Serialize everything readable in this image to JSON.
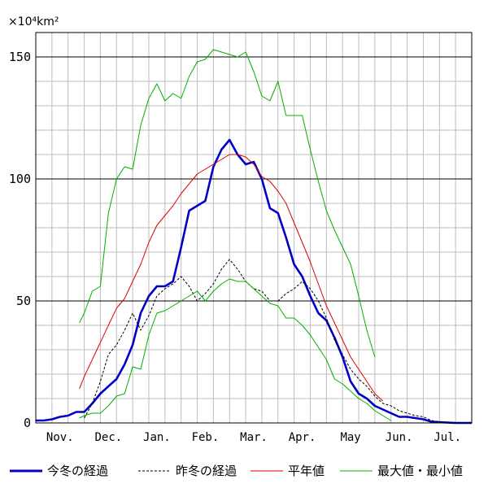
{
  "chart_data": {
    "type": "line",
    "unit_label": "×10⁴km²",
    "ylim": [
      0,
      160
    ],
    "yticks": [
      0,
      50,
      100,
      150
    ],
    "x_axis": "days since Nov 1",
    "xlim": [
      0,
      270
    ],
    "months": [
      "Nov.",
      "Dec.",
      "Jan.",
      "Feb.",
      "Mar.",
      "Apr.",
      "May",
      "Jun.",
      "Jul."
    ],
    "grid": true,
    "legend_position": "bottom",
    "series": [
      {
        "name": "今冬の経過",
        "color": "#0000c8",
        "style": "solid-thick",
        "points": [
          [
            0,
            1
          ],
          [
            5,
            1
          ],
          [
            10,
            1.5
          ],
          [
            15,
            2.5
          ],
          [
            20,
            3
          ],
          [
            25,
            4.5
          ],
          [
            30,
            4.5
          ],
          [
            35,
            8
          ],
          [
            40,
            12
          ],
          [
            45,
            15
          ],
          [
            50,
            18
          ],
          [
            55,
            24
          ],
          [
            60,
            32
          ],
          [
            65,
            45
          ],
          [
            70,
            52
          ],
          [
            75,
            56
          ],
          [
            80,
            56
          ],
          [
            85,
            58
          ],
          [
            90,
            72
          ],
          [
            95,
            87
          ],
          [
            100,
            89
          ],
          [
            105,
            91
          ],
          [
            110,
            105
          ],
          [
            115,
            112
          ],
          [
            120,
            116
          ],
          [
            125,
            110
          ],
          [
            130,
            106
          ],
          [
            135,
            107
          ],
          [
            140,
            100
          ],
          [
            145,
            88
          ],
          [
            150,
            86
          ],
          [
            155,
            76
          ],
          [
            160,
            65
          ],
          [
            165,
            60
          ],
          [
            170,
            52
          ],
          [
            175,
            45
          ],
          [
            180,
            42
          ],
          [
            185,
            35
          ],
          [
            190,
            27
          ],
          [
            195,
            17
          ],
          [
            200,
            12
          ],
          [
            205,
            10
          ],
          [
            210,
            7
          ],
          [
            215,
            5.5
          ],
          [
            220,
            4
          ],
          [
            225,
            2.5
          ],
          [
            230,
            2.5
          ],
          [
            235,
            2
          ],
          [
            240,
            1.5
          ],
          [
            245,
            0.5
          ],
          [
            250,
            0.3
          ],
          [
            260,
            0
          ],
          [
            270,
            0
          ]
        ]
      },
      {
        "name": "昨冬の経過",
        "color": "#000000",
        "style": "dashed",
        "points": [
          [
            30,
            2
          ],
          [
            35,
            8
          ],
          [
            40,
            17
          ],
          [
            45,
            28
          ],
          [
            50,
            32
          ],
          [
            55,
            38
          ],
          [
            60,
            45
          ],
          [
            65,
            38
          ],
          [
            70,
            44
          ],
          [
            75,
            52
          ],
          [
            80,
            55
          ],
          [
            85,
            57
          ],
          [
            90,
            60
          ],
          [
            95,
            56
          ],
          [
            100,
            50
          ],
          [
            105,
            53
          ],
          [
            110,
            57
          ],
          [
            115,
            63
          ],
          [
            120,
            67
          ],
          [
            125,
            63
          ],
          [
            130,
            58
          ],
          [
            135,
            55
          ],
          [
            140,
            54
          ],
          [
            145,
            50
          ],
          [
            150,
            50
          ],
          [
            155,
            53
          ],
          [
            160,
            55
          ],
          [
            165,
            58
          ],
          [
            170,
            55
          ],
          [
            175,
            50
          ],
          [
            180,
            43
          ],
          [
            185,
            34
          ],
          [
            190,
            28
          ],
          [
            195,
            22
          ],
          [
            200,
            18
          ],
          [
            205,
            15
          ],
          [
            210,
            11
          ],
          [
            215,
            8
          ],
          [
            220,
            7
          ],
          [
            225,
            5
          ],
          [
            230,
            4
          ],
          [
            235,
            3
          ],
          [
            240,
            2.5
          ],
          [
            245,
            1
          ],
          [
            250,
            0.5
          ],
          [
            255,
            0
          ]
        ]
      },
      {
        "name": "平年値",
        "color": "#e00000",
        "style": "solid",
        "points": [
          [
            27,
            14
          ],
          [
            30,
            19
          ],
          [
            35,
            26
          ],
          [
            40,
            33
          ],
          [
            45,
            40
          ],
          [
            50,
            47
          ],
          [
            55,
            51
          ],
          [
            60,
            58
          ],
          [
            65,
            65
          ],
          [
            70,
            74
          ],
          [
            75,
            81
          ],
          [
            80,
            85
          ],
          [
            85,
            89
          ],
          [
            90,
            94
          ],
          [
            95,
            98
          ],
          [
            100,
            102
          ],
          [
            105,
            104
          ],
          [
            110,
            106
          ],
          [
            115,
            108
          ],
          [
            120,
            110
          ],
          [
            125,
            110
          ],
          [
            130,
            109
          ],
          [
            135,
            106
          ],
          [
            140,
            101
          ],
          [
            145,
            99
          ],
          [
            150,
            95
          ],
          [
            155,
            90
          ],
          [
            160,
            82
          ],
          [
            165,
            74
          ],
          [
            170,
            66
          ],
          [
            175,
            57
          ],
          [
            180,
            48
          ],
          [
            185,
            41
          ],
          [
            190,
            34
          ],
          [
            195,
            27
          ],
          [
            200,
            22
          ],
          [
            205,
            17
          ],
          [
            210,
            12
          ],
          [
            215,
            9
          ]
        ]
      },
      {
        "name": "最大値・最小値 (最大)",
        "color": "#00b000",
        "style": "solid",
        "points": [
          [
            27,
            41
          ],
          [
            30,
            45
          ],
          [
            35,
            54
          ],
          [
            40,
            56
          ],
          [
            45,
            86
          ],
          [
            50,
            100
          ],
          [
            55,
            105
          ],
          [
            60,
            104
          ],
          [
            65,
            122
          ],
          [
            70,
            133
          ],
          [
            75,
            139
          ],
          [
            80,
            132
          ],
          [
            85,
            135
          ],
          [
            90,
            133
          ],
          [
            95,
            142
          ],
          [
            100,
            148
          ],
          [
            105,
            149
          ],
          [
            110,
            153
          ],
          [
            115,
            152
          ],
          [
            120,
            151
          ],
          [
            125,
            150
          ],
          [
            130,
            152
          ],
          [
            135,
            144
          ],
          [
            140,
            134
          ],
          [
            145,
            132
          ],
          [
            150,
            140
          ],
          [
            155,
            126
          ],
          [
            160,
            126
          ],
          [
            165,
            126
          ],
          [
            170,
            112
          ],
          [
            175,
            99
          ],
          [
            180,
            87
          ],
          [
            185,
            79
          ],
          [
            190,
            72
          ],
          [
            195,
            65
          ],
          [
            200,
            52
          ],
          [
            205,
            38
          ],
          [
            210,
            27
          ]
        ]
      },
      {
        "name": "最大値・最小値 (最小)",
        "color": "#00b000",
        "style": "solid",
        "points": [
          [
            27,
            2
          ],
          [
            30,
            3
          ],
          [
            35,
            4
          ],
          [
            40,
            4
          ],
          [
            45,
            7
          ],
          [
            50,
            11
          ],
          [
            55,
            12
          ],
          [
            60,
            23
          ],
          [
            65,
            22
          ],
          [
            70,
            36
          ],
          [
            75,
            45
          ],
          [
            80,
            46
          ],
          [
            85,
            48
          ],
          [
            90,
            50
          ],
          [
            95,
            52
          ],
          [
            100,
            54
          ],
          [
            105,
            50
          ],
          [
            110,
            54
          ],
          [
            115,
            57
          ],
          [
            120,
            59
          ],
          [
            125,
            58
          ],
          [
            130,
            58
          ],
          [
            135,
            55
          ],
          [
            140,
            52
          ],
          [
            145,
            49
          ],
          [
            150,
            48
          ],
          [
            155,
            43
          ],
          [
            160,
            43
          ],
          [
            165,
            40
          ],
          [
            170,
            36
          ],
          [
            175,
            31
          ],
          [
            180,
            26
          ],
          [
            185,
            18
          ],
          [
            190,
            16
          ],
          [
            195,
            13
          ],
          [
            200,
            10
          ],
          [
            205,
            8
          ],
          [
            210,
            5
          ],
          [
            215,
            3
          ],
          [
            220,
            1
          ]
        ]
      }
    ]
  },
  "legend": [
    {
      "label": "今冬の経過",
      "color": "#0000c8",
      "style": "solid-thick",
      "interactable": false
    },
    {
      "label": "昨冬の経過",
      "color": "#000000",
      "style": "dashed",
      "interactable": false
    },
    {
      "label": "平年値",
      "color": "#e00000",
      "style": "solid",
      "interactable": false
    },
    {
      "label": "最大値・最小値",
      "color": "#00b000",
      "style": "solid",
      "interactable": false
    }
  ]
}
